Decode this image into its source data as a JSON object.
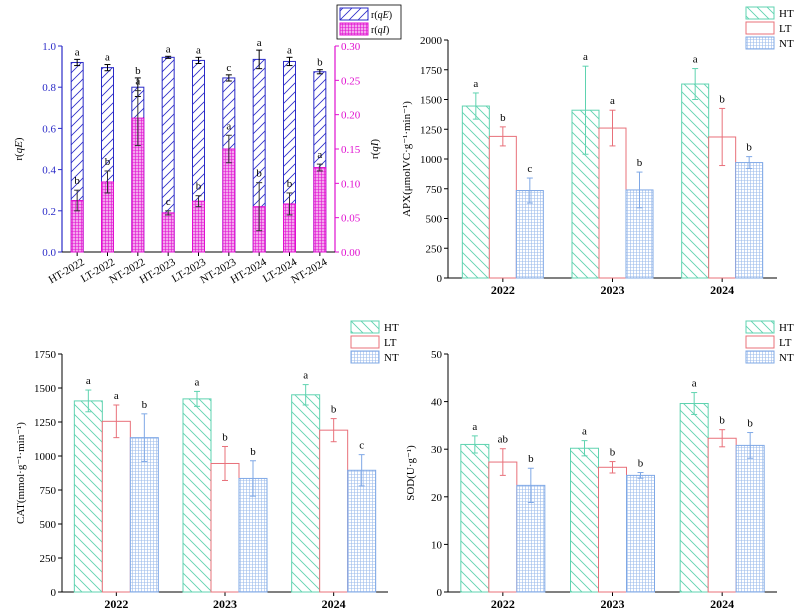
{
  "colors": {
    "HT": "#5fd3b0",
    "LT": "#e8707a",
    "NT": "#7fa8e6",
    "rqE": "#2b2bc8",
    "rqI": "#e010d0",
    "error": "#333333"
  },
  "chart_data": [
    {
      "type": "bar",
      "categories": [
        "HT-2022",
        "LT-2022",
        "NT-2022",
        "HT-2023",
        "LT-2023",
        "NT-2023",
        "HT-2024",
        "LT-2024",
        "NT-2024"
      ],
      "left_axis": {
        "ylabel_pre": "r(",
        "ylabel_ital": "qE",
        "ylabel_post": ")",
        "ylim": [
          0,
          1.0
        ],
        "ticks": [
          0.0,
          0.2,
          0.4,
          0.6,
          0.8,
          1.0
        ],
        "tick_labels": [
          "0.0",
          "0.2",
          "0.4",
          "0.6",
          "0.8",
          "1.0"
        ]
      },
      "right_axis": {
        "ylabel_pre": "r(",
        "ylabel_ital": "qI",
        "ylabel_post": ")",
        "ylim": [
          0,
          0.3
        ],
        "ticks": [
          0.0,
          0.05,
          0.1,
          0.15,
          0.2,
          0.25,
          0.3
        ],
        "tick_labels": [
          "0.00",
          "0.05",
          "0.10",
          "0.15",
          "0.20",
          "0.25",
          "0.30"
        ]
      },
      "legend": {
        "placement": "top-right",
        "entries": [
          {
            "pre": "r(",
            "ital": "qE",
            "post": ")"
          },
          {
            "pre": "r(",
            "ital": "qI",
            "post": ")"
          }
        ]
      },
      "series": [
        {
          "key": "rqE",
          "axis": "left",
          "values": [
            0.92,
            0.895,
            0.8,
            0.945,
            0.93,
            0.845,
            0.935,
            0.925,
            0.875
          ],
          "errors": [
            0.015,
            0.015,
            0.045,
            0.005,
            0.015,
            0.015,
            0.045,
            0.02,
            0.01
          ],
          "labels": [
            "a",
            "a",
            "b",
            "a",
            "a",
            "c",
            "a",
            "a",
            "b"
          ]
        },
        {
          "key": "rqI",
          "axis": "right",
          "values": [
            0.075,
            0.102,
            0.195,
            0.057,
            0.074,
            0.15,
            0.066,
            0.07,
            0.123
          ],
          "errors": [
            0.015,
            0.016,
            0.04,
            0.003,
            0.008,
            0.02,
            0.035,
            0.016,
            0.005
          ],
          "labels": [
            "b",
            "b",
            "a",
            "c",
            "b",
            "a",
            "b",
            "b",
            "a"
          ]
        }
      ]
    },
    {
      "type": "bar",
      "categories": [
        "2022",
        "2023",
        "2024"
      ],
      "ylabel": "APX(μmolVC·g⁻¹·min⁻¹)",
      "ylim": [
        0,
        2000
      ],
      "ticks": [
        0,
        250,
        500,
        750,
        1000,
        1250,
        1500,
        1750,
        2000
      ],
      "tick_labels": [
        "0",
        "250",
        "500",
        "750",
        "1000",
        "1250",
        "1500",
        "1750",
        "2000"
      ],
      "legend": {
        "placement": "top-right",
        "entries": [
          "HT",
          "LT",
          "NT"
        ]
      },
      "series": [
        {
          "name": "HT",
          "values": [
            1445,
            1410,
            1630
          ],
          "errors": [
            110,
            370,
            130
          ],
          "labels": [
            "a",
            "a",
            "a"
          ]
        },
        {
          "name": "LT",
          "values": [
            1190,
            1260,
            1185
          ],
          "errors": [
            80,
            150,
            240
          ],
          "labels": [
            "b",
            "a",
            "b"
          ]
        },
        {
          "name": "NT",
          "values": [
            735,
            740,
            970
          ],
          "errors": [
            105,
            150,
            50
          ],
          "labels": [
            "c",
            "b",
            "b"
          ]
        }
      ]
    },
    {
      "type": "bar",
      "categories": [
        "2022",
        "2023",
        "2024"
      ],
      "ylabel": "CAT(mmol·g⁻¹·min⁻¹)",
      "ylim": [
        0,
        1750
      ],
      "ticks": [
        0,
        250,
        500,
        750,
        1000,
        1250,
        1500,
        1750
      ],
      "tick_labels": [
        "0",
        "250",
        "500",
        "750",
        "1000",
        "1250",
        "1500",
        "1750"
      ],
      "legend": {
        "placement": "top-right",
        "entries": [
          "HT",
          "LT",
          "NT"
        ]
      },
      "series": [
        {
          "name": "HT",
          "values": [
            1405,
            1420,
            1450
          ],
          "errors": [
            80,
            55,
            75
          ],
          "labels": [
            "a",
            "a",
            "a"
          ]
        },
        {
          "name": "LT",
          "values": [
            1255,
            945,
            1190
          ],
          "errors": [
            120,
            125,
            85
          ],
          "labels": [
            "a",
            "b",
            "b"
          ]
        },
        {
          "name": "NT",
          "values": [
            1135,
            835,
            895
          ],
          "errors": [
            175,
            130,
            115
          ],
          "labels": [
            "b",
            "b",
            "c"
          ]
        }
      ]
    },
    {
      "type": "bar",
      "categories": [
        "2022",
        "2023",
        "2024"
      ],
      "ylabel": "SOD(U·g⁻¹)",
      "ylim": [
        0,
        50
      ],
      "ticks": [
        0,
        10,
        20,
        30,
        40,
        50
      ],
      "tick_labels": [
        "0",
        "10",
        "20",
        "30",
        "40",
        "50"
      ],
      "legend": {
        "placement": "top-right",
        "entries": [
          "HT",
          "LT",
          "NT"
        ]
      },
      "series": [
        {
          "name": "HT",
          "values": [
            31.0,
            30.2,
            39.6
          ],
          "errors": [
            1.8,
            1.6,
            2.3
          ],
          "labels": [
            "a",
            "a",
            "a"
          ]
        },
        {
          "name": "LT",
          "values": [
            27.3,
            26.2,
            32.3
          ],
          "errors": [
            2.8,
            1.2,
            1.8
          ],
          "labels": [
            "ab",
            "b",
            "b"
          ]
        },
        {
          "name": "NT",
          "values": [
            22.4,
            24.5,
            30.8
          ],
          "errors": [
            3.6,
            0.6,
            2.7
          ],
          "labels": [
            "b",
            "b",
            "b"
          ]
        }
      ]
    }
  ]
}
